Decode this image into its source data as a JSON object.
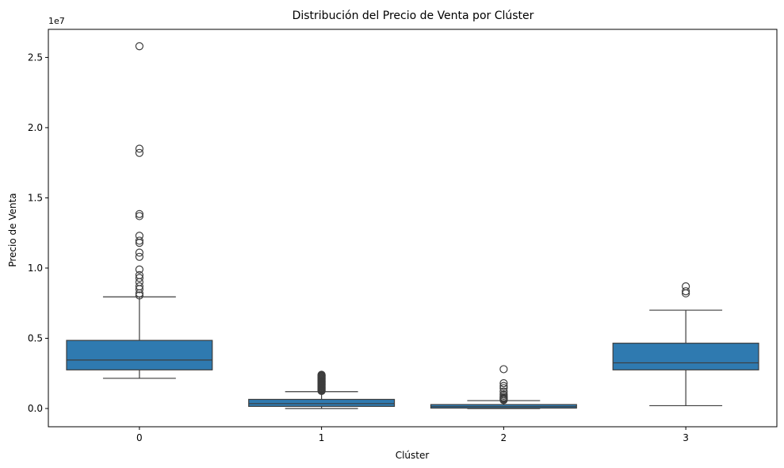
{
  "chart_data": {
    "type": "box",
    "title": "Distribución del Precio de Venta por Clúster",
    "xlabel": "Clúster",
    "ylabel": "Precio de Venta",
    "y_offset_label": "1e7",
    "categories": [
      "0",
      "1",
      "2",
      "3"
    ],
    "ylim": [
      -1300000,
      27000000
    ],
    "yticks": [
      0,
      5000000,
      10000000,
      15000000,
      20000000,
      25000000
    ],
    "ytick_labels": [
      "0.0",
      "0.5",
      "1.0",
      "1.5",
      "2.0",
      "2.5"
    ],
    "grid": false,
    "box_color": "#2f7ab0",
    "line_color": "#3d3d3d",
    "boxes": [
      {
        "category": "0",
        "whisker_low": 2150000,
        "q1": 2750000,
        "median": 3450000,
        "q3": 4850000,
        "whisker_high": 7950000,
        "outliers": [
          8050000,
          8200000,
          8500000,
          8700000,
          9000000,
          9300000,
          9500000,
          9900000,
          10800000,
          11100000,
          11800000,
          11950000,
          12300000,
          13700000,
          13850000,
          18200000,
          18500000,
          25800000
        ]
      },
      {
        "category": "1",
        "whisker_low": 0,
        "q1": 150000,
        "median": 350000,
        "q3": 650000,
        "whisker_high": 1200000,
        "outliers": [
          1250000,
          1300000,
          1350000,
          1400000,
          1450000,
          1500000,
          1550000,
          1600000,
          1650000,
          1700000,
          1750000,
          1800000,
          1850000,
          1900000,
          1950000,
          2000000,
          2050000,
          2100000,
          2150000,
          2200000,
          2250000,
          2300000,
          2350000,
          2400000
        ]
      },
      {
        "category": "2",
        "whisker_low": 0,
        "q1": 30000,
        "median": 130000,
        "q3": 280000,
        "whisker_high": 560000,
        "outliers": [
          600000,
          650000,
          700000,
          750000,
          800000,
          900000,
          1000000,
          1200000,
          1450000,
          1600000,
          1800000,
          2800000
        ]
      },
      {
        "category": "3",
        "whisker_low": 200000,
        "q1": 2750000,
        "median": 3250000,
        "q3": 4650000,
        "whisker_high": 7000000,
        "outliers": [
          8200000,
          8350000,
          8700000
        ]
      }
    ]
  }
}
